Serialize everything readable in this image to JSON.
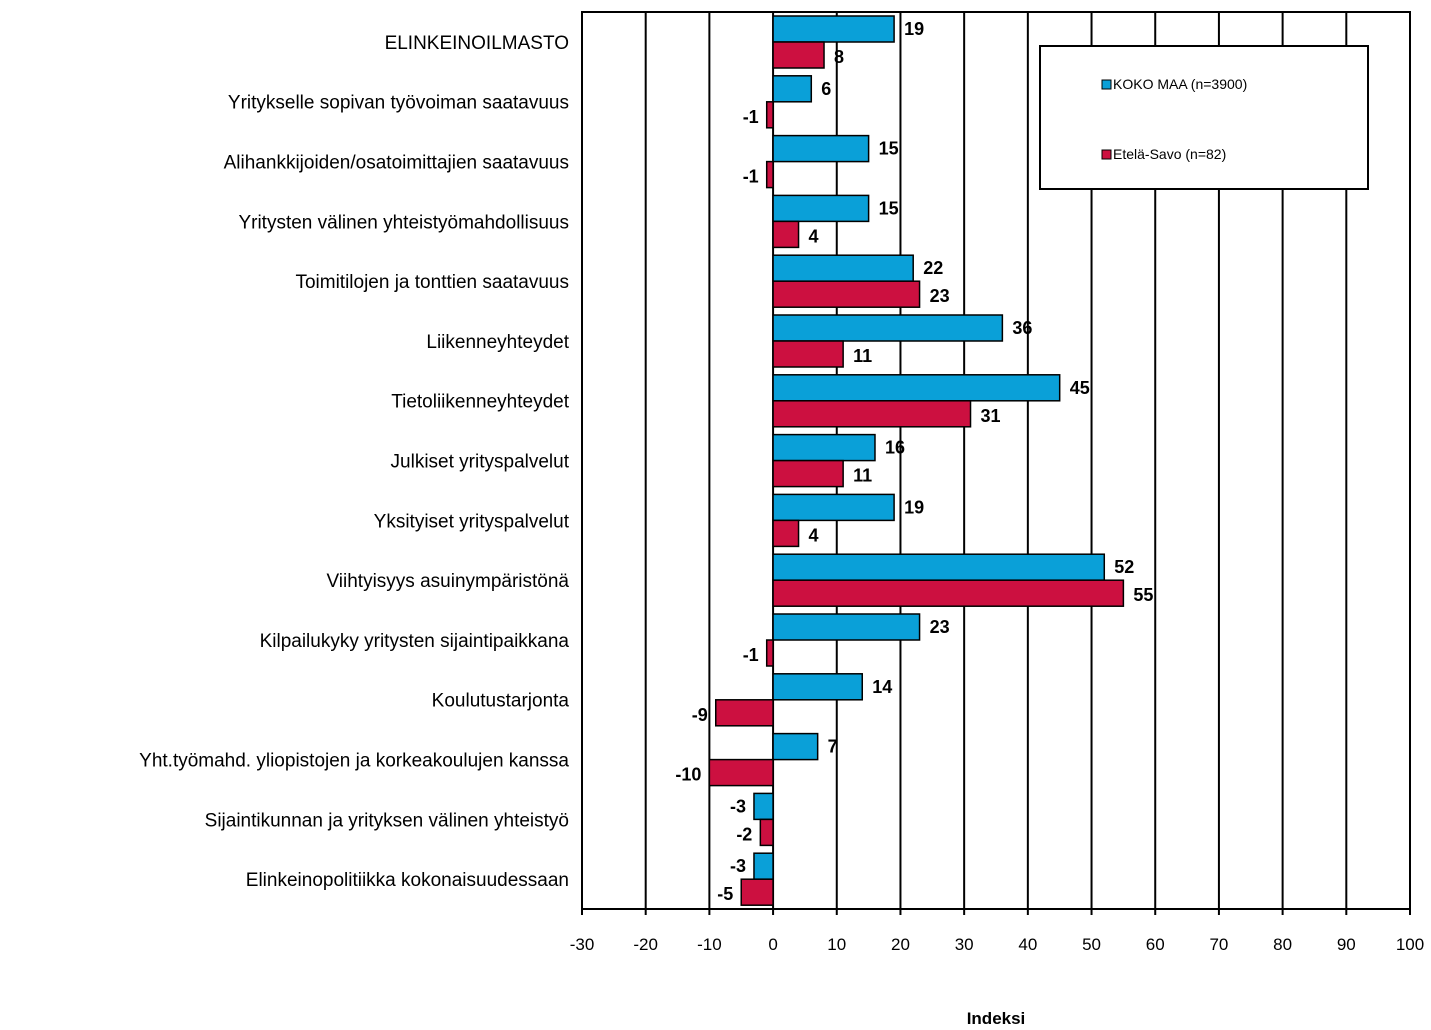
{
  "chart_data": {
    "type": "bar",
    "orientation": "horizontal",
    "categories": [
      "ELINKEINOILMASTO",
      "Yritykselle sopivan työvoiman saatavuus",
      "Alihankkijoiden/osatoimittajien  saatavuus",
      "Yritysten välinen yhteistyömahdollisuus",
      "Toimitilojen ja tonttien saatavuus",
      "Liikenneyhteydet",
      "Tietoliikenneyhteydet",
      "Julkiset yrityspalvelut",
      "Yksityiset yrityspalvelut",
      "Viihtyisyys asuinympäristönä",
      "Kilpailukyky yritysten sijaintipaikkana",
      "Koulutustarjonta",
      "Yht.työmahd. yliopistojen ja korkeakoulujen kanssa",
      "Sijaintikunnan ja yrityksen välinen yhteistyö",
      "Elinkeinopolitiikka kokonaisuudessaan"
    ],
    "series": [
      {
        "name": "KOKO MAA  (n=3900)",
        "color": "#0aa0d8",
        "values": [
          19,
          6,
          15,
          15,
          22,
          36,
          45,
          16,
          19,
          52,
          23,
          14,
          7,
          -3,
          -3
        ]
      },
      {
        "name": "Etelä-Savo  (n=82)",
        "color": "#cc1040",
        "values": [
          8,
          -1,
          -1,
          4,
          23,
          11,
          31,
          11,
          4,
          55,
          -1,
          -9,
          -10,
          -2,
          -5
        ]
      }
    ],
    "xlim": [
      -30,
      100
    ],
    "xticks": [
      "-30",
      "-20",
      "-10",
      "0",
      "10",
      "20",
      "30",
      "40",
      "50",
      "60",
      "70",
      "80",
      "90",
      "100"
    ],
    "xlabel": "Indeksi",
    "ylabel": "",
    "title": "",
    "grid": true,
    "legend_position": "top-right"
  }
}
